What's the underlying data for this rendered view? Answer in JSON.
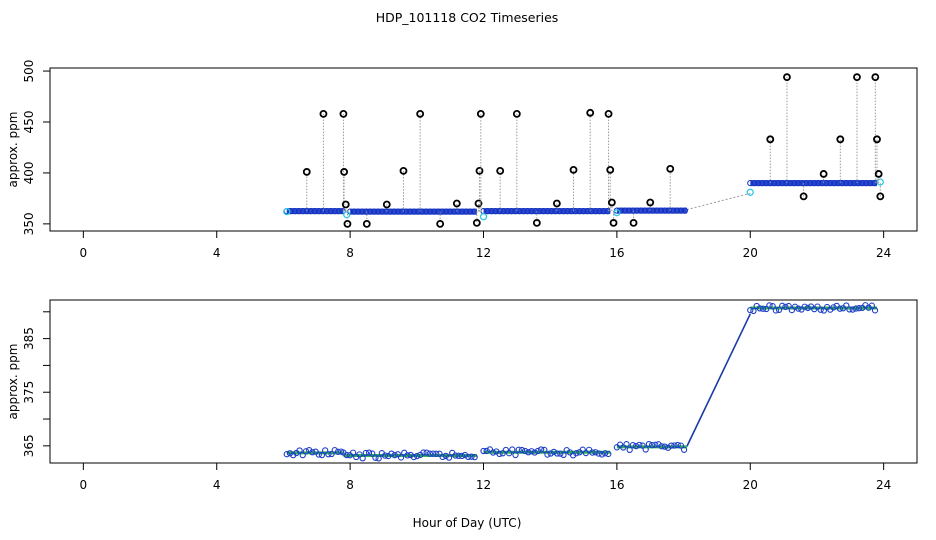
{
  "page_title": "HDP_101118  CO2 Timeseries",
  "chart_data": [
    {
      "type": "scatter",
      "ylabel": "approx. ppm",
      "xlabel": "",
      "xlim": [
        -1,
        25
      ],
      "ylim": [
        343,
        503
      ],
      "xticks": [
        0,
        4,
        8,
        12,
        16,
        20,
        24
      ],
      "yticks": [
        350,
        400,
        450,
        500
      ],
      "ytick_labels": [
        "350",
        "400",
        "450",
        "500"
      ],
      "segments": [
        {
          "x_start": 6.1,
          "x_end": 7.8,
          "y": 362.5
        },
        {
          "x_start": 8.0,
          "x_end": 11.8,
          "y": 362
        },
        {
          "x_start": 12.0,
          "x_end": 15.8,
          "y": 362.5
        },
        {
          "x_start": 16.0,
          "x_end": 18.1,
          "y": 363
        },
        {
          "x_start": 20.0,
          "x_end": 23.8,
          "y": 390
        }
      ],
      "trend_line": [
        [
          18.1,
          364
        ],
        [
          20.0,
          380
        ]
      ],
      "cyan_points": [
        [
          6.1,
          362
        ],
        [
          7.9,
          359
        ],
        [
          12.0,
          357
        ],
        [
          16.0,
          361
        ],
        [
          20.0,
          381
        ],
        [
          23.9,
          391
        ]
      ],
      "spikes": [
        {
          "x": 6.7,
          "y": 401
        },
        {
          "x": 7.2,
          "y": 458
        },
        {
          "x": 7.8,
          "y": 458
        },
        {
          "x": 7.82,
          "y": 401
        },
        {
          "x": 7.87,
          "y": 369
        },
        {
          "x": 7.92,
          "y": 350
        },
        {
          "x": 8.5,
          "y": 350
        },
        {
          "x": 9.1,
          "y": 369
        },
        {
          "x": 9.6,
          "y": 402
        },
        {
          "x": 10.1,
          "y": 458
        },
        {
          "x": 10.7,
          "y": 350
        },
        {
          "x": 11.2,
          "y": 370
        },
        {
          "x": 11.8,
          "y": 351
        },
        {
          "x": 11.85,
          "y": 370
        },
        {
          "x": 11.88,
          "y": 402
        },
        {
          "x": 11.92,
          "y": 458
        },
        {
          "x": 12.5,
          "y": 402
        },
        {
          "x": 13.0,
          "y": 458
        },
        {
          "x": 13.6,
          "y": 351
        },
        {
          "x": 14.2,
          "y": 370
        },
        {
          "x": 14.7,
          "y": 403
        },
        {
          "x": 15.2,
          "y": 459
        },
        {
          "x": 15.75,
          "y": 458
        },
        {
          "x": 15.8,
          "y": 403
        },
        {
          "x": 15.85,
          "y": 371
        },
        {
          "x": 15.9,
          "y": 351
        },
        {
          "x": 16.5,
          "y": 351
        },
        {
          "x": 17.0,
          "y": 371
        },
        {
          "x": 17.6,
          "y": 404
        },
        {
          "x": 20.6,
          "y": 433
        },
        {
          "x": 21.1,
          "y": 494
        },
        {
          "x": 21.6,
          "y": 377
        },
        {
          "x": 22.2,
          "y": 399
        },
        {
          "x": 22.7,
          "y": 433
        },
        {
          "x": 23.2,
          "y": 494
        },
        {
          "x": 23.75,
          "y": 494
        },
        {
          "x": 23.8,
          "y": 433
        },
        {
          "x": 23.85,
          "y": 399
        },
        {
          "x": 23.9,
          "y": 377
        }
      ]
    },
    {
      "type": "scatter",
      "ylabel": "approx. ppm",
      "xlabel": "Hour of Day (UTC)",
      "xlim": [
        -1,
        25
      ],
      "ylim": [
        361.8,
        392.2
      ],
      "xticks": [
        0,
        4,
        8,
        12,
        16,
        20,
        24
      ],
      "yticks": [
        365,
        370,
        375,
        380,
        385,
        390
      ],
      "ytick_labels": [
        "365",
        "",
        "375",
        "",
        "385",
        ""
      ],
      "segments": [
        {
          "x_start": 6.1,
          "x_end": 7.8,
          "y": 363.7
        },
        {
          "x_start": 7.8,
          "x_end": 11.8,
          "y": 363.2
        },
        {
          "x_start": 12.0,
          "x_end": 15.8,
          "y": 363.8
        },
        {
          "x_start": 16.0,
          "x_end": 18.1,
          "y": 364.8
        },
        {
          "x_start": 20.0,
          "x_end": 23.8,
          "y": 390.7
        }
      ],
      "trend_line": [
        [
          18.1,
          364.9
        ],
        [
          20.0,
          389.6
        ]
      ]
    }
  ]
}
